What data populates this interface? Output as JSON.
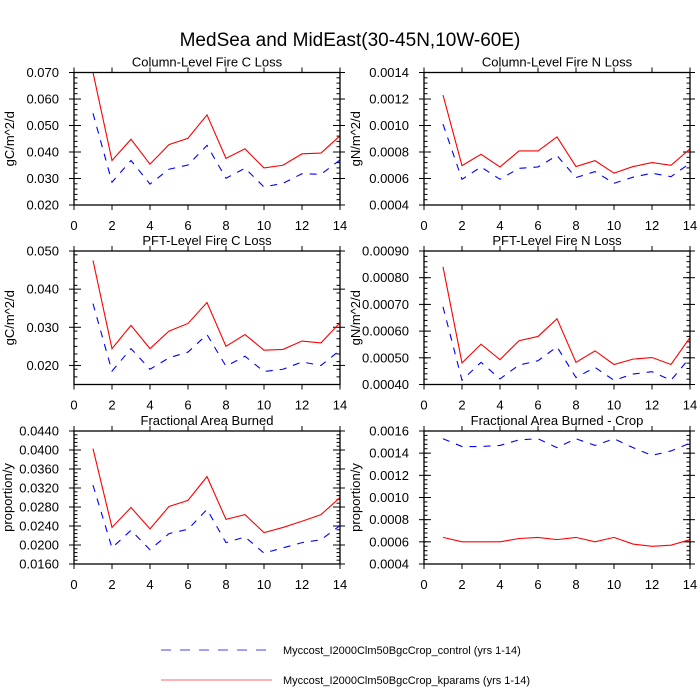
{
  "chart_data": {
    "title": "MedSea and MidEast(30-45N,10W-60E)",
    "legend": {
      "placement": "bottom-center",
      "entries": [
        {
          "label": "Myccost_I2000Clm50BgcCrop_control (yrs 1-14)",
          "color": "#0000ff",
          "style": "dashed"
        },
        {
          "label": "Myccost_I2000Clm50BgcCrop_kparams (yrs 1-14)",
          "color": "#ff0000",
          "style": "solid"
        }
      ]
    },
    "panels": [
      {
        "type": "line",
        "title": "Column-Level Fire C Loss",
        "ylabel": "gC/m^2/d",
        "xlabel": "",
        "xlim": [
          0,
          14
        ],
        "xticks": [
          "0",
          "2",
          "4",
          "6",
          "8",
          "10",
          "12",
          "14"
        ],
        "ylim": [
          0.02,
          0.07
        ],
        "yticks": [
          "0.020",
          "0.030",
          "0.040",
          "0.050",
          "0.060",
          "0.070"
        ],
        "x": [
          1,
          2,
          3,
          4,
          5,
          6,
          7,
          8,
          9,
          10,
          11,
          12,
          13,
          14
        ],
        "series": [
          {
            "name": "Myccost_I2000Clm50BgcCrop_control (yrs 1-14)",
            "values": [
              0.0546,
              0.0286,
              0.0368,
              0.0279,
              0.0335,
              0.0351,
              0.0425,
              0.0301,
              0.0339,
              0.0268,
              0.0282,
              0.0318,
              0.0316,
              0.037
            ]
          },
          {
            "name": "Myccost_I2000Clm50BgcCrop_kparams (yrs 1-14)",
            "values": [
              0.07,
              0.0368,
              0.0448,
              0.0354,
              0.0428,
              0.0452,
              0.054,
              0.0376,
              0.0412,
              0.034,
              0.035,
              0.0393,
              0.0396,
              0.0461
            ]
          }
        ]
      },
      {
        "type": "line",
        "title": "Column-Level Fire N Loss",
        "ylabel": "gN/m^2/d",
        "xlabel": "",
        "xlim": [
          0,
          14
        ],
        "xticks": [
          "0",
          "2",
          "4",
          "6",
          "8",
          "10",
          "12",
          "14"
        ],
        "ylim": [
          0.0004,
          0.0014
        ],
        "yticks": [
          "0.0004",
          "0.0006",
          "0.0008",
          "0.0010",
          "0.0012",
          "0.0014"
        ],
        "x": [
          1,
          2,
          3,
          4,
          5,
          6,
          7,
          8,
          9,
          10,
          11,
          12,
          13,
          14
        ],
        "series": [
          {
            "name": "Myccost_I2000Clm50BgcCrop_control (yrs 1-14)",
            "values": [
              0.00101,
              0.000594,
              0.000687,
              0.000594,
              0.000677,
              0.000687,
              0.000773,
              0.000607,
              0.000652,
              0.000564,
              0.00061,
              0.00064,
              0.000614,
              0.000715
            ]
          },
          {
            "name": "Myccost_I2000Clm50BgcCrop_kparams (yrs 1-14)",
            "values": [
              0.00123,
              0.000697,
              0.000783,
              0.000687,
              0.000808,
              0.000808,
              0.000914,
              0.00069,
              0.000735,
              0.00064,
              0.00069,
              0.00072,
              0.0007,
              0.000823
            ]
          }
        ]
      },
      {
        "type": "line",
        "title": "PFT-Level Fire C Loss",
        "ylabel": "gC/m^2/d",
        "xlabel": "",
        "xlim": [
          0,
          14
        ],
        "xticks": [
          "0",
          "2",
          "4",
          "6",
          "8",
          "10",
          "12",
          "14"
        ],
        "ylim": [
          0.015,
          0.05
        ],
        "yticks": [
          "0.020",
          "0.030",
          "0.040",
          "0.050"
        ],
        "x": [
          1,
          2,
          3,
          4,
          5,
          6,
          7,
          8,
          9,
          10,
          11,
          12,
          13,
          14
        ],
        "series": [
          {
            "name": "Myccost_I2000Clm50BgcCrop_control (yrs 1-14)",
            "values": [
              0.0362,
              0.0185,
              0.0244,
              0.019,
              0.022,
              0.0235,
              0.0281,
              0.0198,
              0.0224,
              0.0184,
              0.019,
              0.0209,
              0.02,
              0.024
            ]
          },
          {
            "name": "Myccost_I2000Clm50BgcCrop_kparams (yrs 1-14)",
            "values": [
              0.0475,
              0.0244,
              0.0305,
              0.0244,
              0.029,
              0.031,
              0.0365,
              0.025,
              0.0281,
              0.024,
              0.0242,
              0.0264,
              0.0259,
              0.0312
            ]
          }
        ]
      },
      {
        "type": "line",
        "title": "PFT-Level Fire N Loss",
        "ylabel": "gN/m^2/d",
        "xlabel": "",
        "xlim": [
          0,
          14
        ],
        "xticks": [
          "0",
          "2",
          "4",
          "6",
          "8",
          "10",
          "12",
          "14"
        ],
        "ylim": [
          0.0004,
          0.0009
        ],
        "yticks": [
          "0.00040",
          "0.00050",
          "0.00060",
          "0.00070",
          "0.00080",
          "0.00090"
        ],
        "x": [
          1,
          2,
          3,
          4,
          5,
          6,
          7,
          8,
          9,
          10,
          11,
          12,
          13,
          14
        ],
        "series": [
          {
            "name": "Myccost_I2000Clm50BgcCrop_control (yrs 1-14)",
            "values": [
              0.000691,
              0.000416,
              0.000483,
              0.000421,
              0.000473,
              0.000489,
              0.000541,
              0.000426,
              0.000464,
              0.000416,
              0.000439,
              0.000448,
              0.000416,
              0.000501
            ]
          },
          {
            "name": "Myccost_I2000Clm50BgcCrop_kparams (yrs 1-14)",
            "values": [
              0.000841,
              0.000481,
              0.000551,
              0.000493,
              0.000564,
              0.00058,
              0.000646,
              0.000483,
              0.000526,
              0.000475,
              0.000495,
              0.000501,
              0.000475,
              0.000576
            ]
          }
        ]
      },
      {
        "type": "line",
        "title": "Fractional Area Burned",
        "ylabel": "proportion/y",
        "xlabel": "",
        "xlim": [
          0,
          14
        ],
        "xticks": [
          "0",
          "2",
          "4",
          "6",
          "8",
          "10",
          "12",
          "14"
        ],
        "ylim": [
          0.016,
          0.044
        ],
        "yticks": [
          "0.0160",
          "0.0200",
          "0.0240",
          "0.0280",
          "0.0320",
          "0.0360",
          "0.0400",
          "0.0440"
        ],
        "x": [
          1,
          2,
          3,
          4,
          5,
          6,
          7,
          8,
          9,
          10,
          11,
          12,
          13,
          14
        ],
        "series": [
          {
            "name": "Myccost_I2000Clm50BgcCrop_control (yrs 1-14)",
            "values": [
              0.0326,
              0.0194,
              0.0231,
              0.019,
              0.0224,
              0.0233,
              0.0275,
              0.0205,
              0.0217,
              0.0183,
              0.0194,
              0.0205,
              0.0211,
              0.0241
            ]
          },
          {
            "name": "Myccost_I2000Clm50BgcCrop_kparams (yrs 1-14)",
            "values": [
              0.0403,
              0.0237,
              0.0279,
              0.0234,
              0.0281,
              0.0294,
              0.0344,
              0.0254,
              0.0264,
              0.0226,
              0.0237,
              0.025,
              0.0264,
              0.03
            ]
          }
        ]
      },
      {
        "type": "line",
        "title": "Fractional Area Burned - Crop",
        "ylabel": "proportion/y",
        "xlabel": "",
        "xlim": [
          0,
          14
        ],
        "xticks": [
          "0",
          "2",
          "4",
          "6",
          "8",
          "10",
          "12",
          "14"
        ],
        "ylim": [
          0.0004,
          0.0016
        ],
        "yticks": [
          "0.0004",
          "0.0006",
          "0.0008",
          "0.0010",
          "0.0012",
          "0.0014",
          "0.0016"
        ],
        "x": [
          1,
          2,
          3,
          4,
          5,
          6,
          7,
          8,
          9,
          10,
          11,
          12,
          13,
          14
        ],
        "series": [
          {
            "name": "Myccost_I2000Clm50BgcCrop_control (yrs 1-14)",
            "values": [
              0.00153,
              0.00146,
              0.00146,
              0.00147,
              0.00152,
              0.00153,
              0.00145,
              0.00153,
              0.00147,
              0.00153,
              0.00145,
              0.00138,
              0.00142,
              0.00149
            ]
          },
          {
            "name": "Myccost_I2000Clm50BgcCrop_kparams (yrs 1-14)",
            "values": [
              0.00064,
              0.0006,
              0.0006,
              0.0006,
              0.00063,
              0.00064,
              0.00062,
              0.00064,
              0.0006,
              0.00064,
              0.00058,
              0.00056,
              0.00057,
              0.00062
            ]
          }
        ]
      }
    ]
  }
}
